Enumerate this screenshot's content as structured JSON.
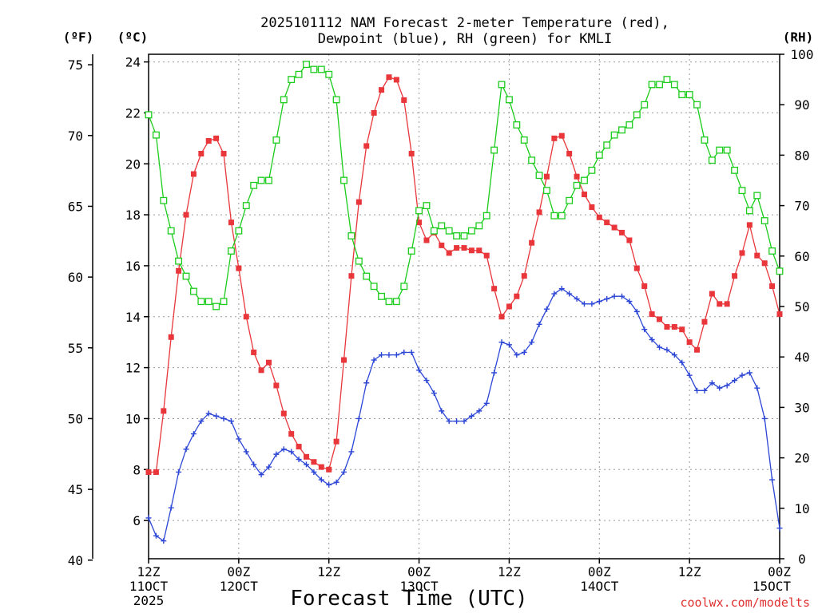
{
  "title_lines": [
    "2025101112 NAM Forecast 2-meter Temperature (red),",
    "Dewpoint (blue), RH (green) for KMLI"
  ],
  "unit_f": "(ºF)",
  "unit_c": "(ºC)",
  "unit_rh": "(RH)",
  "x_title": "Forecast Time (UTC)",
  "credit": "coolwx.com/modelts",
  "colors": {
    "temperature": "#e8363a",
    "dewpoint": "#2c46d6",
    "rh": "#1ccc1c"
  },
  "chart_data": {
    "type": "line",
    "x_unit": "forecast hour from 2025-10-11 12Z",
    "xlim": [
      0,
      84
    ],
    "x_ticks": [
      {
        "x": 0,
        "label": [
          "12Z",
          "11OCT",
          "2025"
        ]
      },
      {
        "x": 12,
        "label": [
          "00Z",
          "12OCT"
        ]
      },
      {
        "x": 24,
        "label": [
          "12Z"
        ]
      },
      {
        "x": 36,
        "label": [
          "00Z",
          "13OCT"
        ]
      },
      {
        "x": 48,
        "label": [
          "12Z"
        ]
      },
      {
        "x": 60,
        "label": [
          "00Z",
          "14OCT"
        ]
      },
      {
        "x": 72,
        "label": [
          "12Z"
        ]
      },
      {
        "x": 84,
        "label": [
          "00Z",
          "15OCT"
        ]
      }
    ],
    "left_f_axis": {
      "ticks": [
        40,
        45,
        50,
        55,
        60,
        65,
        70,
        75
      ]
    },
    "left_c_axis": {
      "ylim": [
        4.5,
        24.3
      ],
      "ticks": [
        6,
        8,
        10,
        12,
        14,
        16,
        18,
        20,
        22,
        24
      ]
    },
    "right_axis": {
      "ylim": [
        0,
        100
      ],
      "ticks": [
        0,
        10,
        20,
        30,
        40,
        50,
        60,
        70,
        80,
        90,
        100
      ]
    },
    "grid": true,
    "series": [
      {
        "key": "temperature",
        "axis": "celsius",
        "marker": "filled-square",
        "x": [
          0,
          1,
          2,
          3,
          4,
          5,
          6,
          7,
          8,
          9,
          10,
          11,
          12,
          13,
          14,
          15,
          16,
          17,
          18,
          19,
          20,
          21,
          22,
          23,
          24,
          25,
          26,
          27,
          28,
          29,
          30,
          31,
          32,
          33,
          34,
          35,
          36,
          37,
          38,
          39,
          40,
          41,
          42,
          43,
          44,
          45,
          46,
          47,
          48,
          49,
          50,
          51,
          52,
          53,
          54,
          55,
          56,
          57,
          58,
          59,
          60,
          61,
          62,
          63,
          64,
          65,
          66,
          67,
          68,
          69,
          70,
          71,
          72,
          73,
          74,
          75,
          76,
          77,
          78,
          79,
          80,
          81,
          82,
          83,
          84
        ],
        "values": [
          7.9,
          7.9,
          10.3,
          13.2,
          15.8,
          18.0,
          19.6,
          20.4,
          20.9,
          21.0,
          20.4,
          17.7,
          15.9,
          14.0,
          12.6,
          11.9,
          12.2,
          11.3,
          10.2,
          9.4,
          8.9,
          8.5,
          8.3,
          8.1,
          8.0,
          9.1,
          12.3,
          15.6,
          18.5,
          20.7,
          22.0,
          22.9,
          23.4,
          23.3,
          22.5,
          20.4,
          17.7,
          17.0,
          17.3,
          16.8,
          16.5,
          16.7,
          16.7,
          16.6,
          16.6,
          16.4,
          15.1,
          14.0,
          14.4,
          14.8,
          15.6,
          16.9,
          18.1,
          19.5,
          21.0,
          21.1,
          20.4,
          19.5,
          18.8,
          18.3,
          17.9,
          17.7,
          17.5,
          17.3,
          17.0,
          15.9,
          15.2,
          14.1,
          13.9,
          13.6,
          13.6,
          13.5,
          13.0,
          12.7,
          13.8,
          14.9,
          14.5,
          14.5,
          15.6,
          16.5,
          17.6,
          16.4,
          16.1,
          15.2,
          14.1
        ]
      },
      {
        "key": "dewpoint",
        "axis": "celsius",
        "marker": "plus",
        "x": [
          0,
          1,
          2,
          3,
          4,
          5,
          6,
          7,
          8,
          9,
          10,
          11,
          12,
          13,
          14,
          15,
          16,
          17,
          18,
          19,
          20,
          21,
          22,
          23,
          24,
          25,
          26,
          27,
          28,
          29,
          30,
          31,
          32,
          33,
          34,
          35,
          36,
          37,
          38,
          39,
          40,
          41,
          42,
          43,
          44,
          45,
          46,
          47,
          48,
          49,
          50,
          51,
          52,
          53,
          54,
          55,
          56,
          57,
          58,
          59,
          60,
          61,
          62,
          63,
          64,
          65,
          66,
          67,
          68,
          69,
          70,
          71,
          72,
          73,
          74,
          75,
          76,
          77,
          78,
          79,
          80,
          81,
          82,
          83,
          84
        ],
        "values": [
          6.1,
          5.4,
          5.2,
          6.5,
          7.9,
          8.8,
          9.4,
          9.9,
          10.2,
          10.1,
          10.0,
          9.9,
          9.2,
          8.7,
          8.2,
          7.8,
          8.1,
          8.6,
          8.8,
          8.7,
          8.4,
          8.2,
          7.9,
          7.6,
          7.4,
          7.5,
          7.9,
          8.7,
          10.0,
          11.4,
          12.3,
          12.5,
          12.5,
          12.5,
          12.6,
          12.6,
          11.9,
          11.5,
          11.0,
          10.3,
          9.9,
          9.9,
          9.9,
          10.1,
          10.3,
          10.6,
          11.8,
          13.0,
          12.9,
          12.5,
          12.6,
          13.0,
          13.7,
          14.3,
          14.9,
          15.1,
          14.9,
          14.7,
          14.5,
          14.5,
          14.6,
          14.7,
          14.8,
          14.8,
          14.6,
          14.2,
          13.5,
          13.1,
          12.8,
          12.7,
          12.5,
          12.2,
          11.7,
          11.1,
          11.1,
          11.4,
          11.2,
          11.3,
          11.5,
          11.7,
          11.8,
          11.2,
          10.0,
          7.6,
          5.7
        ]
      },
      {
        "key": "rh",
        "axis": "right",
        "marker": "open-square",
        "x": [
          0,
          1,
          2,
          3,
          4,
          5,
          6,
          7,
          8,
          9,
          10,
          11,
          12,
          13,
          14,
          15,
          16,
          17,
          18,
          19,
          20,
          21,
          22,
          23,
          24,
          25,
          26,
          27,
          28,
          29,
          30,
          31,
          32,
          33,
          34,
          35,
          36,
          37,
          38,
          39,
          40,
          41,
          42,
          43,
          44,
          45,
          46,
          47,
          48,
          49,
          50,
          51,
          52,
          53,
          54,
          55,
          56,
          57,
          58,
          59,
          60,
          61,
          62,
          63,
          64,
          65,
          66,
          67,
          68,
          69,
          70,
          71,
          72,
          73,
          74,
          75,
          76,
          77,
          78,
          79,
          80,
          81,
          82,
          83,
          84
        ],
        "values": [
          88,
          84,
          71,
          65,
          59,
          56,
          53,
          51,
          51,
          50,
          51,
          61,
          65,
          70,
          74,
          75,
          75,
          83,
          91,
          95,
          96,
          98,
          97,
          97,
          96,
          91,
          75,
          64,
          59,
          56,
          54,
          52,
          51,
          51,
          54,
          61,
          69,
          70,
          65,
          66,
          65,
          64,
          64,
          65,
          66,
          68,
          81,
          94,
          91,
          86,
          83,
          79,
          76,
          73,
          68,
          68,
          71,
          74,
          75,
          77,
          80,
          82,
          84,
          85,
          86,
          88,
          90,
          94,
          94,
          95,
          94,
          92,
          92,
          90,
          83,
          79,
          81,
          81,
          77,
          73,
          69,
          72,
          67,
          61,
          57
        ]
      }
    ]
  }
}
